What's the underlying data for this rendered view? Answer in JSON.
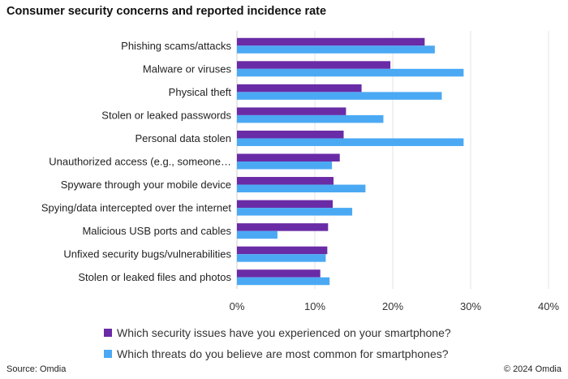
{
  "chart_data": {
    "type": "bar",
    "orientation": "horizontal",
    "title": "Consumer security concerns and reported incidence rate",
    "categories": [
      "Phishing scams/attacks",
      "Malware or viruses",
      "Physical theft",
      "Stolen or leaked passwords",
      "Personal data stolen",
      "Unauthorized access (e.g., someone…",
      "Spyware through your mobile device",
      "Spying/data intercepted over the internet",
      "Malicious USB ports and cables",
      "Unfixed security bugs/vulnerabilities",
      "Stolen or leaked files and photos"
    ],
    "series": [
      {
        "name": "Which security issues have you experienced on your smartphone?",
        "color": "#6a2ba6",
        "values": [
          24.1,
          19.7,
          16.0,
          14.0,
          13.7,
          13.2,
          12.4,
          12.3,
          11.7,
          11.6,
          10.7
        ]
      },
      {
        "name": "Which threats do you believe are most common for smartphones?",
        "color": "#4ba9f4",
        "values": [
          25.4,
          29.1,
          26.3,
          18.8,
          29.1,
          12.2,
          16.5,
          14.8,
          5.2,
          11.4,
          11.9
        ]
      }
    ],
    "xlim": [
      0,
      40
    ],
    "xticks": [
      "0%",
      "10%",
      "20%",
      "30%",
      "40%"
    ],
    "xtick_values": [
      0,
      10,
      20,
      30,
      40
    ],
    "grid": true,
    "legend": "bottom"
  },
  "footer": {
    "source": "Source: Omdia",
    "copyright": "© 2024 Omdia"
  }
}
